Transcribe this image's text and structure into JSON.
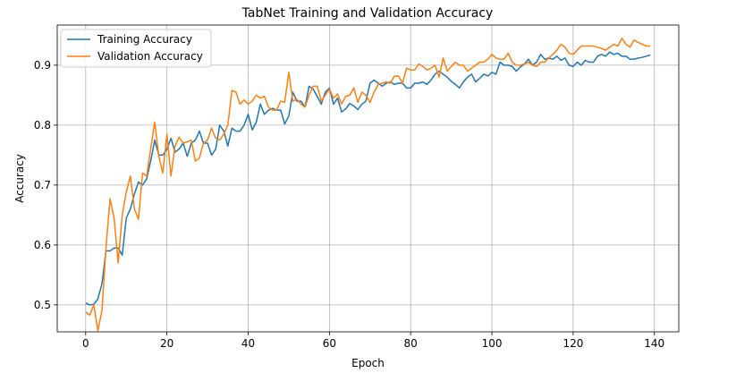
{
  "chart_data": {
    "type": "line",
    "title": "TabNet Training and Validation Accuracy",
    "xlabel": "Epoch",
    "ylabel": "Accuracy",
    "xlim": [
      -7,
      146
    ],
    "ylim": [
      0.455,
      0.967
    ],
    "x_ticks": [
      0,
      20,
      40,
      60,
      80,
      100,
      120,
      140
    ],
    "y_ticks": [
      0.5,
      0.6,
      0.7,
      0.8,
      0.9
    ],
    "y_tick_labels": [
      "0.5",
      "0.6",
      "0.7",
      "0.8",
      "0.9"
    ],
    "grid": true,
    "legend_position": "top-left",
    "series": [
      {
        "name": "Training Accuracy",
        "color": "#1f77b4",
        "values": [
          0.503,
          0.5,
          0.501,
          0.51,
          0.535,
          0.59,
          0.59,
          0.595,
          0.595,
          0.583,
          0.645,
          0.66,
          0.685,
          0.705,
          0.7,
          0.71,
          0.74,
          0.775,
          0.75,
          0.75,
          0.76,
          0.778,
          0.755,
          0.76,
          0.77,
          0.748,
          0.77,
          0.775,
          0.79,
          0.77,
          0.77,
          0.75,
          0.76,
          0.8,
          0.79,
          0.765,
          0.795,
          0.79,
          0.79,
          0.8,
          0.818,
          0.792,
          0.805,
          0.835,
          0.818,
          0.825,
          0.828,
          0.825,
          0.825,
          0.802,
          0.815,
          0.855,
          0.84,
          0.84,
          0.83,
          0.865,
          0.86,
          0.848,
          0.835,
          0.855,
          0.862,
          0.835,
          0.845,
          0.822,
          0.827,
          0.836,
          0.832,
          0.826,
          0.835,
          0.84,
          0.87,
          0.875,
          0.87,
          0.865,
          0.87,
          0.872,
          0.868,
          0.87,
          0.87,
          0.862,
          0.862,
          0.87,
          0.87,
          0.872,
          0.868,
          0.875,
          0.885,
          0.89,
          0.885,
          0.88,
          0.873,
          0.868,
          0.862,
          0.872,
          0.88,
          0.885,
          0.872,
          0.878,
          0.885,
          0.882,
          0.888,
          0.885,
          0.905,
          0.9,
          0.9,
          0.898,
          0.89,
          0.897,
          0.902,
          0.91,
          0.9,
          0.905,
          0.918,
          0.91,
          0.912,
          0.91,
          0.915,
          0.908,
          0.912,
          0.9,
          0.898,
          0.905,
          0.9,
          0.908,
          0.905,
          0.905,
          0.915,
          0.918,
          0.915,
          0.922,
          0.918,
          0.92,
          0.915,
          0.915,
          0.91,
          0.91,
          0.912,
          0.913,
          0.915,
          0.917
        ]
      },
      {
        "name": "Validation Accuracy",
        "color": "#ff7f0e",
        "values": [
          0.488,
          0.483,
          0.5,
          0.457,
          0.49,
          0.595,
          0.677,
          0.645,
          0.57,
          0.65,
          0.688,
          0.715,
          0.66,
          0.643,
          0.72,
          0.715,
          0.76,
          0.805,
          0.748,
          0.72,
          0.785,
          0.715,
          0.765,
          0.78,
          0.77,
          0.772,
          0.775,
          0.74,
          0.745,
          0.77,
          0.775,
          0.795,
          0.778,
          0.775,
          0.785,
          0.8,
          0.858,
          0.855,
          0.835,
          0.842,
          0.835,
          0.84,
          0.85,
          0.845,
          0.848,
          0.83,
          0.825,
          0.825,
          0.84,
          0.838,
          0.888,
          0.84,
          0.843,
          0.835,
          0.83,
          0.85,
          0.865,
          0.865,
          0.84,
          0.85,
          0.86,
          0.845,
          0.852,
          0.835,
          0.848,
          0.85,
          0.862,
          0.838,
          0.855,
          0.85,
          0.838,
          0.855,
          0.868,
          0.87,
          0.872,
          0.87,
          0.882,
          0.882,
          0.87,
          0.895,
          0.892,
          0.892,
          0.902,
          0.898,
          0.892,
          0.895,
          0.9,
          0.88,
          0.912,
          0.89,
          0.898,
          0.905,
          0.9,
          0.9,
          0.89,
          0.895,
          0.9,
          0.905,
          0.905,
          0.91,
          0.918,
          0.912,
          0.91,
          0.91,
          0.92,
          0.905,
          0.9,
          0.9,
          0.902,
          0.905,
          0.9,
          0.898,
          0.905,
          0.905,
          0.912,
          0.918,
          0.925,
          0.935,
          0.93,
          0.92,
          0.918,
          0.925,
          0.932,
          0.932,
          0.932,
          0.932,
          0.93,
          0.928,
          0.925,
          0.93,
          0.935,
          0.932,
          0.945,
          0.935,
          0.93,
          0.942,
          0.938,
          0.935,
          0.932,
          0.932
        ]
      }
    ]
  }
}
